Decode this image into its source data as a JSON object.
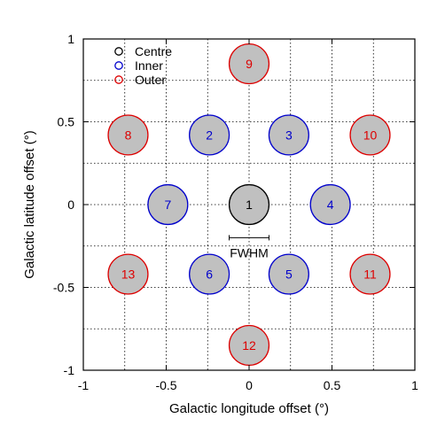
{
  "chart_data": {
    "type": "scatter",
    "xlabel": "Galactic longitude offset (°)",
    "ylabel": "Galactic latitude offset (°)",
    "xlim": [
      -1,
      1
    ],
    "ylim": [
      -1,
      1
    ],
    "x_ticks": [
      -1,
      -0.5,
      0,
      0.5,
      1
    ],
    "y_ticks": [
      -1,
      -0.5,
      0,
      0.5,
      1
    ],
    "x_minor_grid": [
      -0.75,
      -0.25,
      0.25,
      0.75
    ],
    "y_minor_grid": [
      -0.75,
      -0.25,
      0.25,
      0.75
    ],
    "grid": true,
    "legend_position": "top-left",
    "beam_radius": 0.12,
    "beam_fill": "#c0c0c0",
    "series": [
      {
        "name": "Centre",
        "color": "#000000",
        "points": [
          {
            "label": "1",
            "x": 0,
            "y": 0
          }
        ]
      },
      {
        "name": "Inner",
        "color": "#0000cc",
        "points": [
          {
            "label": "2",
            "x": -0.24,
            "y": 0.42
          },
          {
            "label": "3",
            "x": 0.24,
            "y": 0.42
          },
          {
            "label": "4",
            "x": 0.49,
            "y": 0
          },
          {
            "label": "5",
            "x": 0.24,
            "y": -0.42
          },
          {
            "label": "6",
            "x": -0.24,
            "y": -0.42
          },
          {
            "label": "7",
            "x": -0.49,
            "y": 0
          }
        ]
      },
      {
        "name": "Outer",
        "color": "#dd0000",
        "points": [
          {
            "label": "8",
            "x": -0.73,
            "y": 0.42
          },
          {
            "label": "9",
            "x": 0,
            "y": 0.85
          },
          {
            "label": "10",
            "x": 0.73,
            "y": 0.42
          },
          {
            "label": "11",
            "x": 0.73,
            "y": -0.42
          },
          {
            "label": "12",
            "x": 0,
            "y": -0.85
          },
          {
            "label": "13",
            "x": -0.73,
            "y": -0.42
          }
        ]
      }
    ],
    "annotation": {
      "text": "FWHM",
      "x_from": -0.12,
      "x_to": 0.12,
      "y": -0.2
    }
  }
}
